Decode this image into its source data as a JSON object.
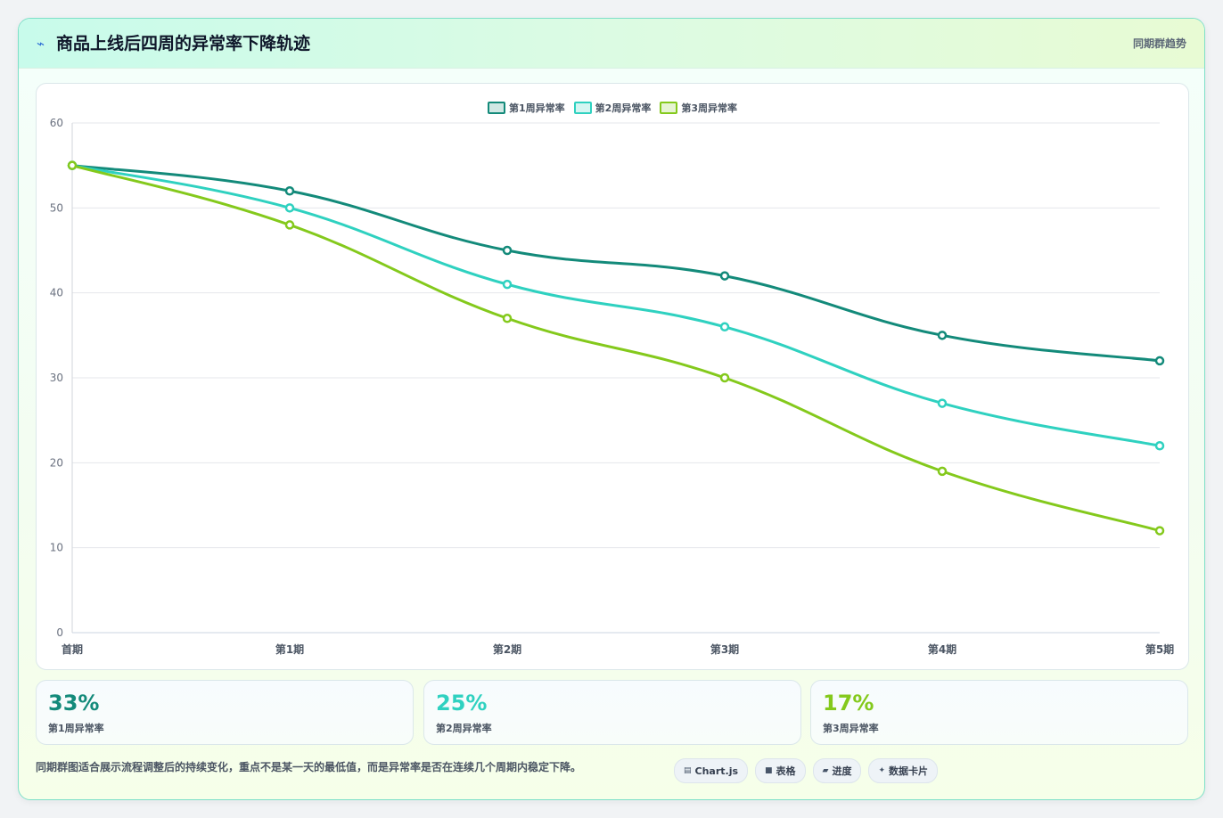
{
  "header": {
    "icon": "lightning-icon",
    "title": "商品上线后四周的异常率下降轨迹",
    "right_label": "同期群趋势"
  },
  "chart_data": {
    "type": "line",
    "x": [
      "首期",
      "第1期",
      "第2期",
      "第3期",
      "第4期",
      "第5期"
    ],
    "series": [
      {
        "name": "第1周异常率",
        "color": "#138a7a",
        "values": [
          55,
          52,
          45,
          42,
          35,
          32
        ]
      },
      {
        "name": "第2周异常率",
        "color": "#2fd1c0",
        "values": [
          55,
          50,
          41,
          36,
          27,
          22
        ]
      },
      {
        "name": "第3周异常率",
        "color": "#84c91c",
        "values": [
          55,
          48,
          37,
          30,
          19,
          12
        ]
      }
    ],
    "ylim": [
      0,
      60
    ],
    "yticks": [
      0,
      10,
      20,
      30,
      40,
      50,
      60
    ],
    "grid": true,
    "legend": "top-center",
    "xlabel": "",
    "ylabel": ""
  },
  "stats": [
    {
      "value": "33%",
      "label": "第1周异常率",
      "color": "#138a7a"
    },
    {
      "value": "25%",
      "label": "第2周异常率",
      "color": "#2fd1c0"
    },
    {
      "value": "17%",
      "label": "第3周异常率",
      "color": "#84c91c"
    }
  ],
  "note": "同期群图适合展示流程调整后的持续变化，重点不是某一天的最低值，而是异常率是否在连续几个周期内稳定下降。",
  "chips": [
    {
      "icon": "chart-icon",
      "glyph": "▤",
      "label": "Chart.js"
    },
    {
      "icon": "table-icon",
      "glyph": "■",
      "label": "表格"
    },
    {
      "icon": "progress-icon",
      "glyph": "▰",
      "label": "进度"
    },
    {
      "icon": "sparkle-icon",
      "glyph": "✦",
      "label": "数据卡片"
    }
  ]
}
